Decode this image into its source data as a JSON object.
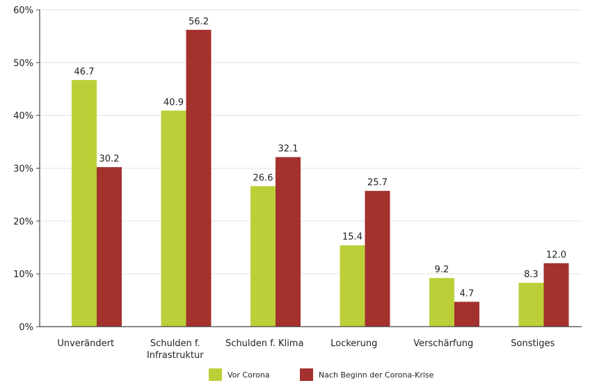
{
  "chart_data": {
    "type": "bar",
    "categories": [
      [
        "Unverändert"
      ],
      [
        "Schulden f.",
        "Infrastruktur"
      ],
      [
        "Schulden f. Klima"
      ],
      [
        "Lockerung"
      ],
      [
        "Verschärfung"
      ],
      [
        "Sonstiges"
      ]
    ],
    "series": [
      {
        "name": "Vor Corona",
        "color": "#bccf38",
        "values": [
          46.7,
          40.9,
          26.6,
          15.4,
          9.2,
          8.3
        ],
        "labels": [
          "46.7",
          "40.9",
          "26.6",
          "15.4",
          "9.2",
          "8.3"
        ]
      },
      {
        "name": "Nach Beginn der Corona-Krise",
        "color": "#a3312d",
        "values": [
          30.2,
          56.2,
          32.1,
          25.7,
          4.7,
          12.0
        ],
        "labels": [
          "30.2",
          "56.2",
          "32.1",
          "25.7",
          "4.7",
          "12.0"
        ]
      }
    ],
    "y_ticks": [
      0,
      10,
      20,
      30,
      40,
      50,
      60
    ],
    "y_tick_labels": [
      "0%",
      "10%",
      "20%",
      "30%",
      "40%",
      "50%",
      "60%"
    ],
    "ylim": [
      0,
      60
    ],
    "grid": true,
    "legend_position": "bottom-center",
    "colors": {
      "grid": "#e3e3e3",
      "axis": "#444444"
    }
  }
}
